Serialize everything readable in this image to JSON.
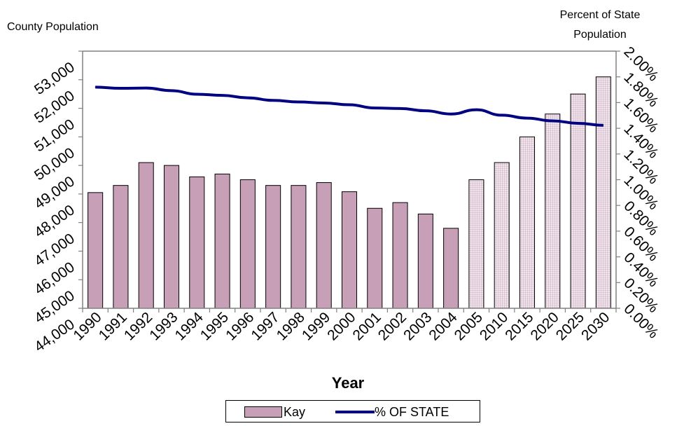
{
  "labels": {
    "left_axis_title": "County Population",
    "right_axis_title_line1": "Percent of State",
    "right_axis_title_line2": "Population"
  },
  "legend": {
    "bar_label": "Kay",
    "line_label": "% OF STATE"
  },
  "colors": {
    "bar_fill": "#c79fb7",
    "projection_fill": "#f2e6ee",
    "projection_grid": "#b08aa0",
    "line": "#000080",
    "axis": "#808080"
  },
  "chart_data": {
    "type": "bar",
    "xlabel": "Year",
    "ylabel": "County Population",
    "y2label": "Percent of State Population",
    "categories": [
      "1990",
      "1991",
      "1992",
      "1993",
      "1994",
      "1995",
      "1996",
      "1997",
      "1998",
      "1999",
      "2000",
      "2001",
      "2002",
      "2003",
      "2004",
      "2005",
      "2010",
      "2015",
      "2020",
      "2025",
      "2030"
    ],
    "ylim": [
      44000,
      53000
    ],
    "yticks": [
      "44,000",
      "45,000",
      "46,000",
      "47,000",
      "48,000",
      "49,000",
      "50,000",
      "51,000",
      "52,000",
      "53,000"
    ],
    "y2lim": [
      0,
      0.02
    ],
    "y2ticks": [
      "0.00%",
      "0.20%",
      "0.40%",
      "0.60%",
      "0.80%",
      "1.00%",
      "1.20%",
      "1.40%",
      "1.60%",
      "1.80%",
      "2.00%"
    ],
    "projected_from": "2005",
    "series": [
      {
        "name": "Kay",
        "type": "bar",
        "axis": "left",
        "values": [
          48050,
          48300,
          49100,
          49000,
          48600,
          48700,
          48500,
          48300,
          48300,
          48400,
          48080,
          47500,
          47700,
          47300,
          46800,
          48500,
          49100,
          50000,
          50800,
          51500,
          52100
        ]
      },
      {
        "name": "% OF STATE",
        "type": "line",
        "axis": "right",
        "values": [
          0.0172,
          0.01711,
          0.01713,
          0.01693,
          0.01665,
          0.01656,
          0.01637,
          0.01617,
          0.01605,
          0.01597,
          0.01583,
          0.01558,
          0.01554,
          0.01536,
          0.01511,
          0.01544,
          0.01502,
          0.01479,
          0.01458,
          0.01439,
          0.01423
        ]
      }
    ]
  }
}
